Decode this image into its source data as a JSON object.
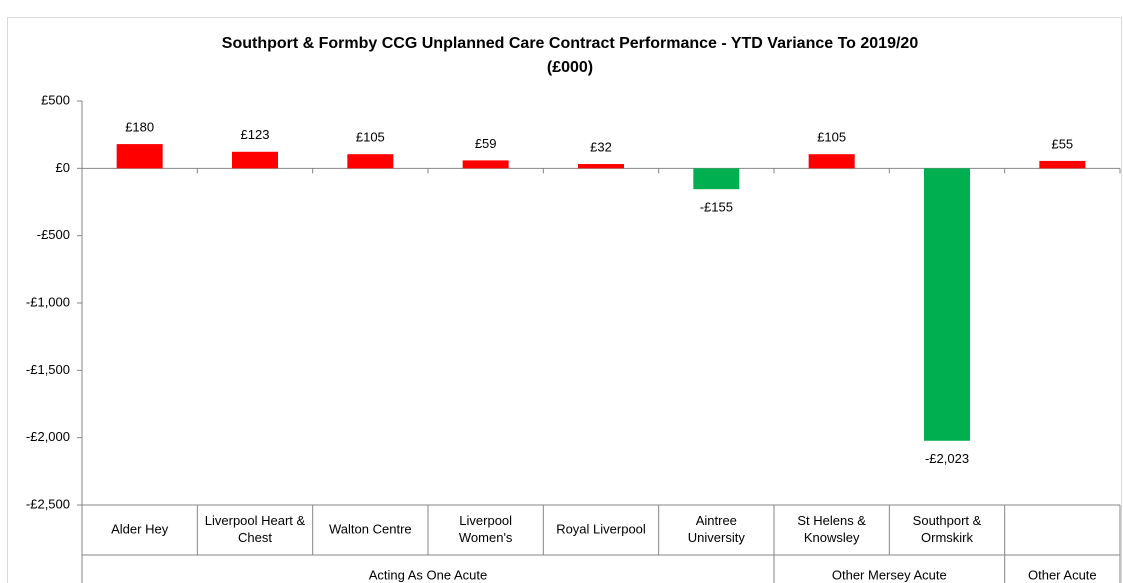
{
  "chart_data": {
    "type": "bar",
    "title": [
      "Southport & Formby CCG Unplanned Care Contract Performance - YTD Variance To 2019/20",
      "(£000)"
    ],
    "categories": [
      [
        "Alder Hey"
      ],
      [
        "Liverpool Heart &",
        "Chest"
      ],
      [
        "Walton Centre"
      ],
      [
        "Liverpool",
        "Women's"
      ],
      [
        "Royal Liverpool"
      ],
      [
        "Aintree",
        "University"
      ],
      [
        "St Helens &",
        "Knowsley"
      ],
      [
        "Southport &",
        "Ormskirk"
      ],
      [
        ""
      ]
    ],
    "groups": [
      {
        "name": "Acting As One Acute",
        "count": 6
      },
      {
        "name": "Other Mersey Acute",
        "count": 2
      },
      {
        "name": "Other Acute",
        "count": 1
      }
    ],
    "values": [
      180,
      123,
      105,
      59,
      32,
      -155,
      105,
      -2023,
      55
    ],
    "value_labels": [
      "£180",
      "£123",
      "£105",
      "£59",
      "£32",
      "-£155",
      "£105",
      "-£2,023",
      "£55"
    ],
    "positive_color": "#ff0000",
    "negative_color": "#00b050",
    "ylim": [
      -2500,
      500
    ],
    "yticks": [
      {
        "value": 500,
        "label": "£500"
      },
      {
        "value": 0,
        "label": "£0"
      },
      {
        "value": -500,
        "label": "-£500"
      },
      {
        "value": -1000,
        "label": "-£1,000"
      },
      {
        "value": -1500,
        "label": "-£1,500"
      },
      {
        "value": -2000,
        "label": "-£2,000"
      },
      {
        "value": -2500,
        "label": "-£2,500"
      }
    ],
    "grid": false
  }
}
